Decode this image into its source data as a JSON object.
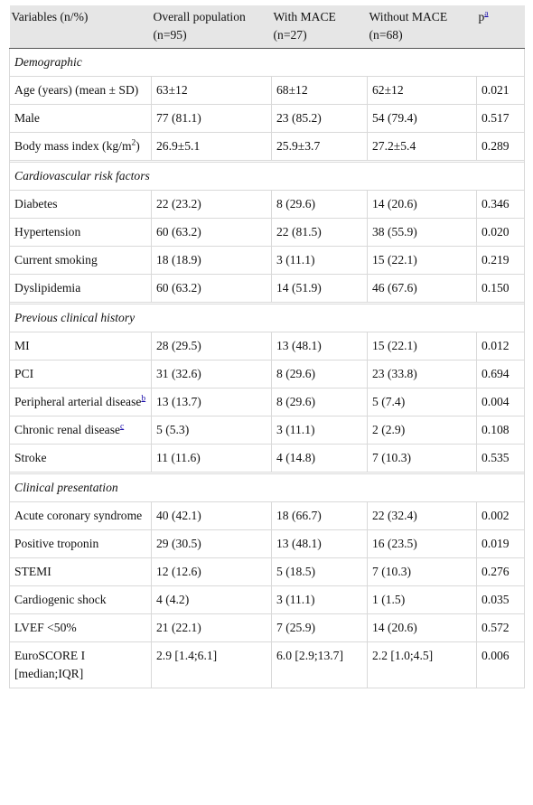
{
  "columns": [
    "Variables (n/%)",
    "Overall population (n=95)",
    "With MACE (n=27)",
    "Without MACE (n=68)",
    "p"
  ],
  "p_footnote": "a",
  "sections": [
    {
      "title": "Demographic",
      "rows": [
        {
          "label": "Age (years) (mean ± SD)",
          "overall": "63±12",
          "with": "68±12",
          "without": "62±12",
          "p": "0.021"
        },
        {
          "label": "Male",
          "overall": "77 (81.1)",
          "with": "23 (85.2)",
          "without": "54 (79.4)",
          "p": "0.517"
        },
        {
          "label": "Body mass index (kg/m",
          "sup": "2",
          "label_suffix": ")",
          "overall": "26.9±5.1",
          "with": "25.9±3.7",
          "without": "27.2±5.4",
          "p": "0.289"
        }
      ]
    },
    {
      "title": "Cardiovascular risk factors",
      "rows": [
        {
          "label": "Diabetes",
          "overall": "22 (23.2)",
          "with": "8 (29.6)",
          "without": "14 (20.6)",
          "p": "0.346"
        },
        {
          "label": "Hypertension",
          "overall": "60 (63.2)",
          "with": "22 (81.5)",
          "without": "38 (55.9)",
          "p": "0.020"
        },
        {
          "label": "Current smoking",
          "overall": "18 (18.9)",
          "with": "3 (11.1)",
          "without": "15 (22.1)",
          "p": "0.219"
        },
        {
          "label": "Dyslipidemia",
          "overall": "60 (63.2)",
          "with": "14 (51.9)",
          "without": "46 (67.6)",
          "p": "0.150"
        }
      ]
    },
    {
      "title": "Previous clinical history",
      "rows": [
        {
          "label": "MI",
          "overall": "28 (29.5)",
          "with": "13 (48.1)",
          "without": "15 (22.1)",
          "p": "0.012"
        },
        {
          "label": "PCI",
          "overall": "31 (32.6)",
          "with": "8 (29.6)",
          "without": "23 (33.8)",
          "p": "0.694"
        },
        {
          "label": "Peripheral arterial disease",
          "footnote": "b",
          "overall": "13 (13.7)",
          "with": "8 (29.6)",
          "without": "5 (7.4)",
          "p": "0.004"
        },
        {
          "label": "Chronic renal disease",
          "footnote": "c",
          "overall": "5 (5.3)",
          "with": "3 (11.1)",
          "without": "2 (2.9)",
          "p": "0.108"
        },
        {
          "label": "Stroke",
          "overall": "11 (11.6)",
          "with": "4 (14.8)",
          "without": "7 (10.3)",
          "p": "0.535"
        }
      ]
    },
    {
      "title": "Clinical presentation",
      "rows": [
        {
          "label": "Acute coronary syndrome",
          "overall": "40 (42.1)",
          "with": "18 (66.7)",
          "without": "22 (32.4)",
          "p": "0.002"
        },
        {
          "label": "Positive troponin",
          "overall": "29 (30.5)",
          "with": "13 (48.1)",
          "without": "16 (23.5)",
          "p": "0.019"
        },
        {
          "label": "STEMI",
          "overall": "12 (12.6)",
          "with": "5 (18.5)",
          "without": "7 (10.3)",
          "p": "0.276"
        },
        {
          "label": "Cardiogenic shock",
          "overall": "4 (4.2)",
          "with": "3 (11.1)",
          "without": "1 (1.5)",
          "p": "0.035"
        },
        {
          "label": "LVEF <50%",
          "overall": "21 (22.1)",
          "with": "7 (25.9)",
          "without": "14 (20.6)",
          "p": "0.572"
        },
        {
          "label": "EuroSCORE I [median;IQR]",
          "overall": "2.9 [1.4;6.1]",
          "with": "6.0 [2.9;13.7]",
          "without": "2.2 [1.0;4.5]",
          "p": "0.006"
        }
      ]
    }
  ]
}
